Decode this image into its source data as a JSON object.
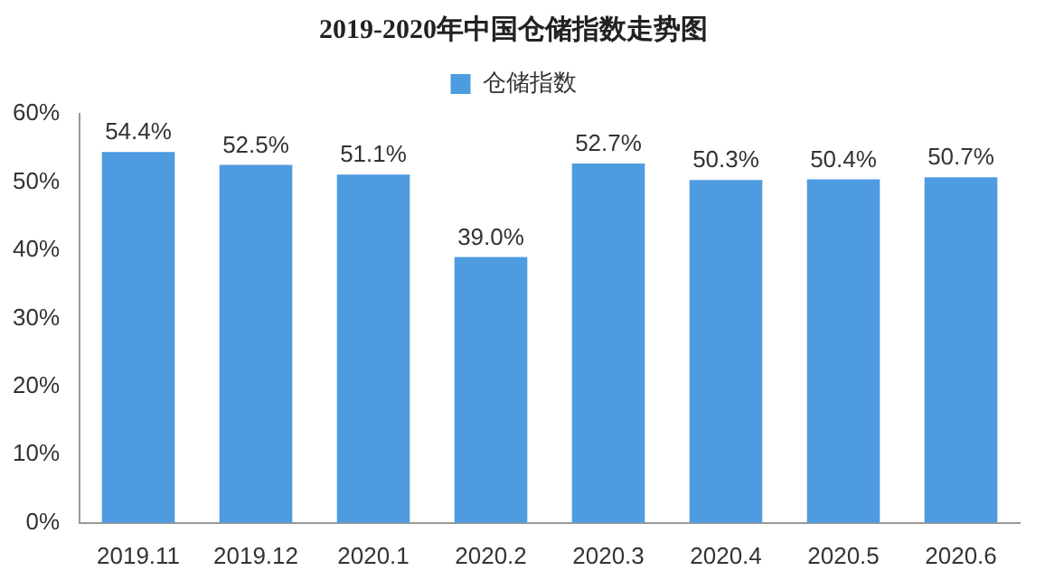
{
  "chart_data": {
    "type": "bar",
    "title": "2019-2020年中国仓储指数走势图",
    "categories": [
      "2019.11",
      "2019.12",
      "2020.1",
      "2020.2",
      "2020.3",
      "2020.4",
      "2020.5",
      "2020.6"
    ],
    "series": [
      {
        "name": "仓储指数",
        "color": "#4e9be0",
        "values": [
          54.4,
          52.5,
          51.1,
          39.0,
          52.7,
          50.3,
          50.4,
          50.7
        ],
        "value_labels": [
          "54.4%",
          "52.5%",
          "51.1%",
          "39.0%",
          "52.7%",
          "50.3%",
          "50.4%",
          "50.7%"
        ]
      }
    ],
    "ylim": [
      0,
      60
    ],
    "yticks": [
      {
        "value": 0,
        "label": "0%"
      },
      {
        "value": 10,
        "label": "10%"
      },
      {
        "value": 20,
        "label": "20%"
      },
      {
        "value": 30,
        "label": "30%"
      },
      {
        "value": 40,
        "label": "40%"
      },
      {
        "value": 50,
        "label": "50%"
      },
      {
        "value": 60,
        "label": "60%"
      }
    ],
    "grid": false,
    "legend": "top"
  }
}
